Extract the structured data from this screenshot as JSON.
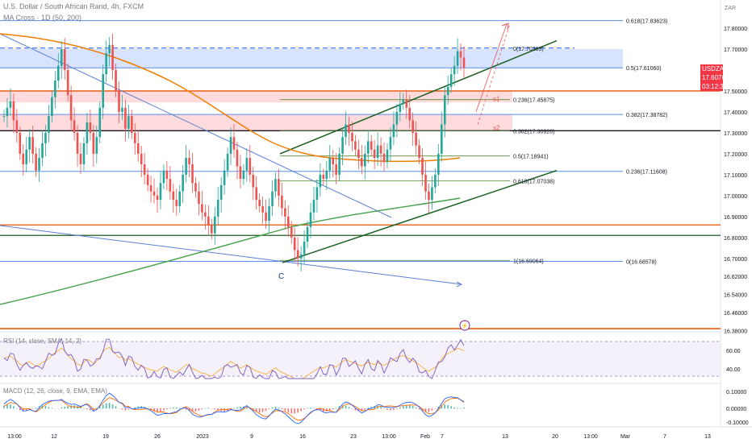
{
  "header": {
    "title": "U.S. Dollar / South African Rand, 4h, FXCM",
    "indicator": "MA Cross · 1D (50, 200)"
  },
  "pane_labels": {
    "rsi": "RSI (14, close, SMA, 14, 2)",
    "macd": "MACD (12, 26, close, 9, EMA, EMA)"
  },
  "price_axis": {
    "unit": "ZAR",
    "ticks": [
      "17.80000",
      "17.70000",
      "17.60760",
      "17.50000",
      "17.40000",
      "17.30000",
      "17.20000",
      "17.10000",
      "17.00000",
      "16.90000",
      "16.80000",
      "16.70000",
      "16.62000",
      "16.54000",
      "16.46000",
      "16.38000"
    ],
    "symbol_tag": "USDZAR",
    "price_tag": "17.60760",
    "countdown_tag": "03:12:35"
  },
  "rsi_axis": {
    "ticks": [
      "60.00",
      "40.00"
    ]
  },
  "macd_axis": {
    "ticks": [
      "0.10000",
      "0.00000",
      "-0.10000"
    ]
  },
  "time_axis": {
    "ticks": [
      "13:00",
      "12",
      "19",
      "26",
      "2023",
      "9",
      "16",
      "23",
      "13:00",
      "Feb",
      "7",
      "13",
      "20",
      "13:00",
      "Mar",
      "7",
      "13"
    ]
  },
  "annotations": {
    "fib_labels": [
      "0.618(17.83623)",
      "0(17.70309)",
      "0.5(17.61060)",
      "0.236(17.45875)",
      "0.382(17.38782)",
      "0.382(17.30928)",
      "0.5(17.18941)",
      "0.236(17.11608)",
      "0.618(17.07038)",
      "1(16.69064)",
      "0(16.68578)"
    ],
    "s1": "s1",
    "s2": "s2",
    "c_label": "C"
  },
  "colors": {
    "up": "#26a69a",
    "down": "#ef5350",
    "ma50": "#ef7d00",
    "ma200": "#43a047",
    "trend": "#1b5e20",
    "fib": "#5b8def",
    "rsi": "#7e57c2",
    "macd": "#2962ff",
    "signal": "#ff6d00",
    "price_tag": "#f23645",
    "zone_blue": "#c7d8ff",
    "zone_red": "#ffd2d6"
  },
  "chart_data": {
    "type": "candlestick",
    "title": "U.S. Dollar / South African Rand, 4h, FXCM",
    "ylim": [
      16.33,
      17.93
    ],
    "last_price": 17.6076,
    "x_ticks": [
      "13:00",
      "12",
      "19",
      "26",
      "2023",
      "9",
      "16",
      "23",
      "13:00",
      "Feb",
      "7",
      "13",
      "20",
      "13:00",
      "Mar",
      "7",
      "13"
    ],
    "candles": [
      17.38,
      17.42,
      17.45,
      17.36,
      17.3,
      17.2,
      17.15,
      17.22,
      17.28,
      17.2,
      17.12,
      17.18,
      17.25,
      17.3,
      17.38,
      17.47,
      17.55,
      17.62,
      17.7,
      17.6,
      17.48,
      17.36,
      17.3,
      17.2,
      17.15,
      17.25,
      17.35,
      17.3,
      17.2,
      17.28,
      17.42,
      17.58,
      17.68,
      17.72,
      17.6,
      17.5,
      17.4,
      17.42,
      17.32,
      17.38,
      17.3,
      17.25,
      17.2,
      17.15,
      17.1,
      17.05,
      17.02,
      17.0,
      16.98,
      17.06,
      17.12,
      17.08,
      17.02,
      16.98,
      16.95,
      17.02,
      17.1,
      17.18,
      17.15,
      17.06,
      17.02,
      16.96,
      16.92,
      16.9,
      16.86,
      16.82,
      16.9,
      16.98,
      17.05,
      17.12,
      17.2,
      17.28,
      17.22,
      17.14,
      17.08,
      17.12,
      17.18,
      17.1,
      17.04,
      16.98,
      16.95,
      16.92,
      16.88,
      16.95,
      17.02,
      17.08,
      17.0,
      16.94,
      16.9,
      16.85,
      16.8,
      16.74,
      16.7,
      16.72,
      16.78,
      16.85,
      16.92,
      16.98,
      17.04,
      17.1,
      17.08,
      17.12,
      17.18,
      17.15,
      17.1,
      17.2,
      17.28,
      17.34,
      17.3,
      17.26,
      17.22,
      17.18,
      17.14,
      17.2,
      17.26,
      17.22,
      17.18,
      17.24,
      17.2,
      17.16,
      17.22,
      17.28,
      17.34,
      17.4,
      17.44,
      17.46,
      17.42,
      17.36,
      17.3,
      17.24,
      17.18,
      17.1,
      17.02,
      16.98,
      17.04,
      17.1,
      17.2,
      17.34,
      17.48,
      17.52,
      17.58,
      17.62,
      17.69,
      17.66,
      17.61
    ]
  }
}
